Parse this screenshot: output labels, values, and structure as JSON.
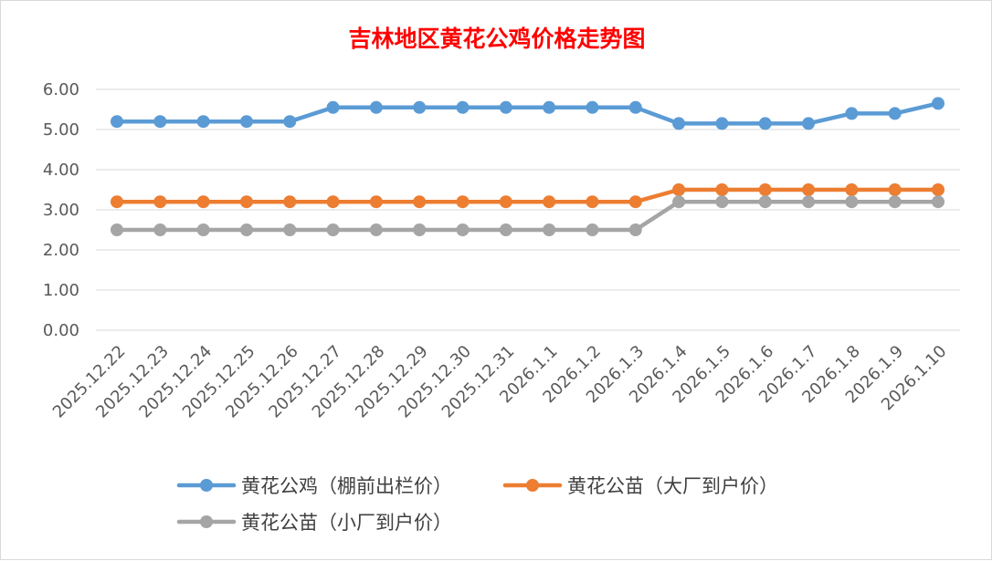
{
  "chart_data": {
    "type": "line",
    "title": "吉林地区黄花公鸡价格走势图",
    "title_color": "#ff0000",
    "categories": [
      "2025.12.22",
      "2025.12.23",
      "2025.12.24",
      "2025.12.25",
      "2025.12.26",
      "2025.12.27",
      "2025.12.28",
      "2025.12.29",
      "2025.12.30",
      "2025.12.31",
      "2026.1.1",
      "2026.1.2",
      "2026.1.3",
      "2026.1.4",
      "2026.1.5",
      "2026.1.6",
      "2026.1.7",
      "2026.1.8",
      "2026.1.9",
      "2026.1.10"
    ],
    "y_ticks": [
      "0.00",
      "1.00",
      "2.00",
      "3.00",
      "4.00",
      "5.00",
      "6.00"
    ],
    "ylim": [
      0,
      6
    ],
    "grid": true,
    "legend_position": "bottom",
    "series": [
      {
        "name": "黄花公鸡（棚前出栏价）",
        "color": "#5b9bd5",
        "values": [
          5.2,
          5.2,
          5.2,
          5.2,
          5.2,
          5.55,
          5.55,
          5.55,
          5.55,
          5.55,
          5.55,
          5.55,
          5.55,
          5.15,
          5.15,
          5.15,
          5.15,
          5.4,
          5.4,
          5.65
        ]
      },
      {
        "name": "黄花公苗（大厂到户价）",
        "color": "#ed7d31",
        "values": [
          3.2,
          3.2,
          3.2,
          3.2,
          3.2,
          3.2,
          3.2,
          3.2,
          3.2,
          3.2,
          3.2,
          3.2,
          3.2,
          3.5,
          3.5,
          3.5,
          3.5,
          3.5,
          3.5,
          3.5
        ]
      },
      {
        "name": "黄花公苗（小厂到户价）",
        "color": "#a5a5a5",
        "values": [
          2.5,
          2.5,
          2.5,
          2.5,
          2.5,
          2.5,
          2.5,
          2.5,
          2.5,
          2.5,
          2.5,
          2.5,
          2.5,
          3.2,
          3.2,
          3.2,
          3.2,
          3.2,
          3.2,
          3.2
        ]
      }
    ]
  }
}
